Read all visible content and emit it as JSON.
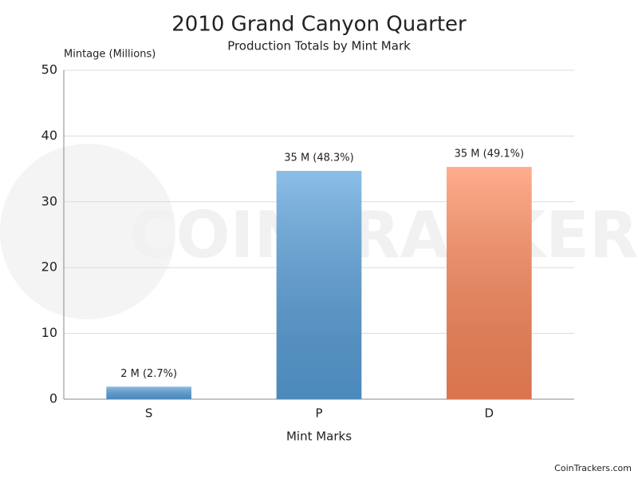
{
  "chart_data": {
    "type": "bar",
    "title": "2010 Grand Canyon Quarter",
    "subtitle": "Production Totals by Mint Mark",
    "y_label": "Mintage (Millions)",
    "x_label": "Mint Marks",
    "watermark": "COINTRACKERS",
    "source": "CoinTrackers.com",
    "categories": [
      "S",
      "P",
      "D"
    ],
    "values": [
      1.9,
      34.7,
      35.3
    ],
    "value_labels": [
      "2 M (2.7%)",
      "35 M (48.3%)",
      "35 M (49.1%)"
    ],
    "colors": [
      "#5aa2dd",
      "#5aa2dd",
      "#ff8a5c"
    ],
    "ylim": [
      0,
      50
    ],
    "yticks": [
      0,
      10,
      20,
      30,
      40,
      50
    ],
    "grid": true
  }
}
